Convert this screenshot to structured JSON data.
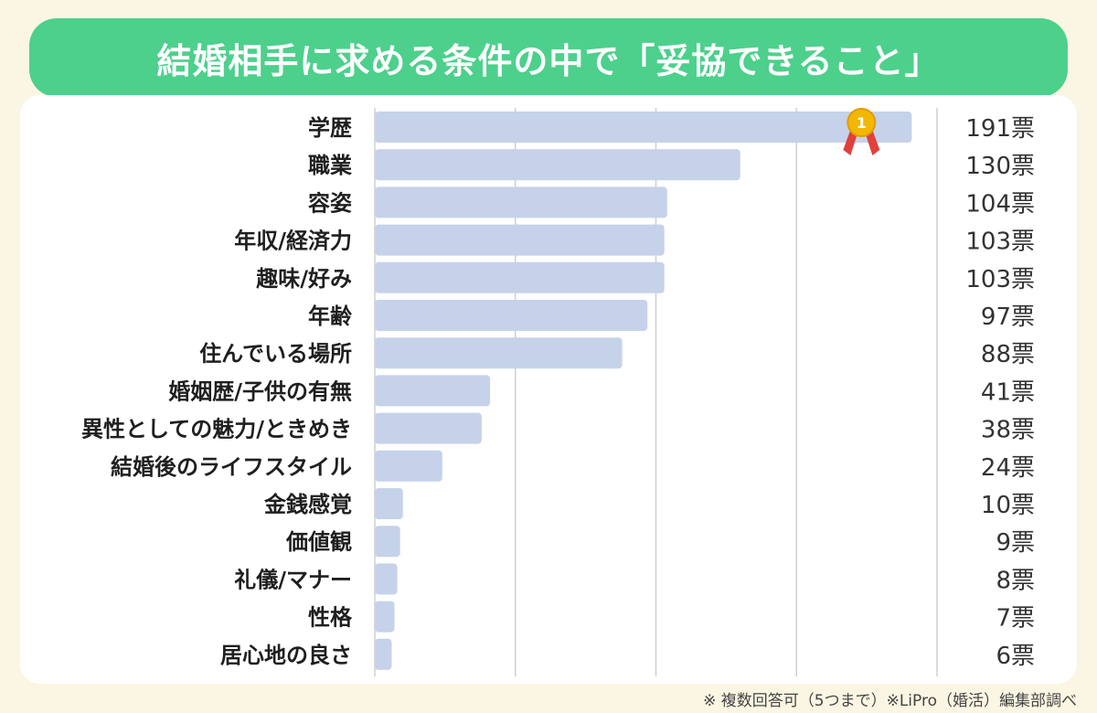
{
  "title": "結婚相手に求める条件の中で「妥協できること」",
  "footnote": "※ 複数回答可（5つまで）※LiPro（婚活）編集部調べ",
  "badge_number": "1",
  "colors": {
    "banner": "#4dd08c",
    "bar": "#c5d2ea",
    "grid": "#cfcfcf",
    "medal": "#f2b705",
    "ribbon": "#e0413b",
    "background": "#fbf6e3"
  },
  "chart_data": {
    "type": "bar",
    "orientation": "horizontal",
    "categories": [
      "学歴",
      "職業",
      "容姿",
      "年収/経済力",
      "趣味/好み",
      "年齢",
      "住んでいる場所",
      "婚姻歴/子供の有無",
      "異性としての魅力/ときめき",
      "結婚後のライフスタイル",
      "金銭感覚",
      "価値観",
      "礼儀/マナー",
      "性格",
      "居心地の良さ"
    ],
    "values": [
      191,
      130,
      104,
      103,
      103,
      97,
      88,
      41,
      38,
      24,
      10,
      9,
      8,
      7,
      6
    ],
    "value_labels": [
      "191票",
      "130票",
      "104票",
      "103票",
      "103票",
      "97票",
      "88票",
      "41票",
      "38票",
      "24票",
      "10票",
      "9票",
      "8票",
      "7票",
      "6票"
    ],
    "xlim": [
      0,
      200
    ],
    "xticks": [
      0,
      50,
      100,
      150,
      200
    ],
    "grid": true
  }
}
